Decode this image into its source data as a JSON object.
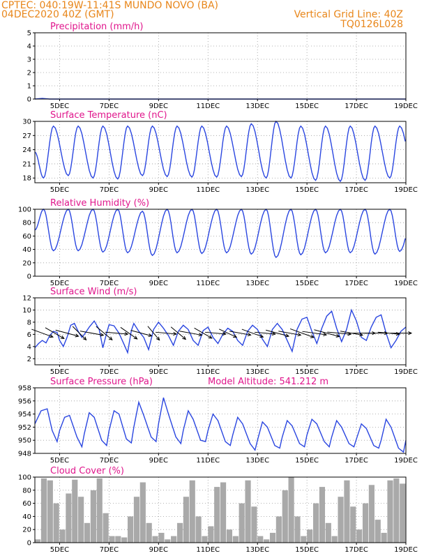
{
  "header": {
    "station": "CPTEC:  040:19W-11:41S  MUNDO NOVO (BA)",
    "run": "04DEC2020 40Z (GMT)",
    "grid_note": "Vertical Grid Line: 40Z",
    "model": "TQ0126L028"
  },
  "colors": {
    "series": "#2a46e0",
    "title": "#e0168c",
    "header": "#e8861a",
    "cloud": "#a9a9a9",
    "wind_arrow": "#000000"
  },
  "chart_data": [
    {
      "type": "line",
      "title": "Precipitation (mm/h)",
      "x_ticks": [
        "5DEC",
        "7DEC",
        "9DEC",
        "11DEC",
        "13DEC",
        "15DEC",
        "17DEC",
        "19DEC"
      ],
      "x_range_days": [
        4,
        19
      ],
      "ylim": [
        0,
        5
      ],
      "y_ticks": [
        0,
        1,
        2,
        3,
        4,
        5
      ],
      "grid": true,
      "series": [
        {
          "x_days": [
            4.0,
            4.3,
            4.6,
            19.0
          ],
          "values": [
            0.0,
            0.05,
            0.0,
            0.0
          ]
        }
      ]
    },
    {
      "type": "line",
      "title": "Surface Temperature (nC)",
      "x_ticks": [
        "5DEC",
        "7DEC",
        "9DEC",
        "11DEC",
        "13DEC",
        "15DEC",
        "17DEC",
        "19DEC"
      ],
      "x_range_days": [
        4,
        19
      ],
      "ylim": [
        17,
        30
      ],
      "y_ticks": [
        18,
        21,
        24,
        27,
        30
      ],
      "grid": true,
      "daily_cycle": {
        "max_at_day_fraction": 0.75,
        "min_at_day_fraction": 0.35,
        "days": [
          "4DEC",
          "5DEC",
          "6DEC",
          "7DEC",
          "8DEC",
          "9DEC",
          "10DEC",
          "11DEC",
          "12DEC",
          "13DEC",
          "14DEC",
          "15DEC",
          "16DEC",
          "17DEC",
          "18DEC",
          "19DEC"
        ],
        "daily_max": [
          29.0,
          29.0,
          29.0,
          29.0,
          29.0,
          29.0,
          29.0,
          29.0,
          29.5,
          30.0,
          29.0,
          29.0,
          29.0,
          29.0,
          29.0,
          29.0
        ],
        "daily_min": [
          18.0,
          18.5,
          18.0,
          17.8,
          18.5,
          18.3,
          18.2,
          18.2,
          18.3,
          18.0,
          18.0,
          17.5,
          17.3,
          17.5,
          18.0,
          18.5
        ]
      }
    },
    {
      "type": "line",
      "title": "Relative Humidity (%)",
      "x_ticks": [
        "5DEC",
        "7DEC",
        "9DEC",
        "11DEC",
        "13DEC",
        "15DEC",
        "17DEC",
        "19DEC"
      ],
      "x_range_days": [
        4,
        19
      ],
      "ylim": [
        0,
        100
      ],
      "y_ticks": [
        0,
        20,
        40,
        60,
        80,
        100
      ],
      "grid": true,
      "daily_cycle": {
        "max_at_day_fraction": 0.35,
        "min_at_day_fraction": 0.75,
        "days": [
          "4DEC",
          "5DEC",
          "6DEC",
          "7DEC",
          "8DEC",
          "9DEC",
          "10DEC",
          "11DEC",
          "12DEC",
          "13DEC",
          "14DEC",
          "15DEC",
          "16DEC",
          "17DEC",
          "18DEC",
          "19DEC"
        ],
        "daily_max": [
          100,
          100,
          100,
          100,
          97,
          100,
          100,
          100,
          100,
          100,
          100,
          100,
          100,
          100,
          100,
          100
        ],
        "daily_min": [
          38,
          38,
          36,
          35,
          31,
          35,
          34,
          35,
          33,
          28,
          32,
          35,
          35,
          33,
          37,
          38
        ]
      }
    },
    {
      "type": "line",
      "title": "Surface Wind (m/s)",
      "x_ticks": [
        "5DEC",
        "7DEC",
        "9DEC",
        "11DEC",
        "13DEC",
        "15DEC",
        "17DEC",
        "19DEC"
      ],
      "x_range_days": [
        4,
        19
      ],
      "ylim": [
        1,
        12
      ],
      "y_ticks": [
        2,
        4,
        6,
        8,
        10,
        12
      ],
      "grid": true,
      "series": [
        {
          "x_days": [
            4.0,
            4.15,
            4.3,
            4.45,
            4.6,
            4.75,
            4.9,
            5.0,
            5.15,
            5.3,
            5.45,
            5.6,
            5.75,
            5.9,
            6.0,
            6.2,
            6.4,
            6.6,
            6.75,
            6.9,
            7.0,
            7.2,
            7.4,
            7.6,
            7.75,
            7.9,
            8.0,
            8.2,
            8.4,
            8.6,
            8.8,
            9.0,
            9.2,
            9.4,
            9.6,
            9.8,
            10.0,
            10.2,
            10.4,
            10.6,
            10.8,
            11.0,
            11.2,
            11.4,
            11.6,
            11.8,
            12.0,
            12.2,
            12.4,
            12.6,
            12.8,
            13.0,
            13.2,
            13.4,
            13.6,
            13.8,
            14.0,
            14.2,
            14.4,
            14.6,
            14.8,
            15.0,
            15.2,
            15.4,
            15.6,
            15.8,
            16.0,
            16.2,
            16.4,
            16.6,
            16.8,
            17.0,
            17.2,
            17.4,
            17.6,
            17.8,
            18.0,
            18.2,
            18.4,
            18.6,
            18.8,
            19.0
          ],
          "values": [
            3.8,
            4.5,
            5.0,
            4.6,
            5.8,
            6.5,
            6.3,
            5.0,
            4.0,
            5.5,
            7.5,
            7.8,
            6.5,
            5.5,
            6.0,
            7.2,
            8.2,
            6.8,
            3.8,
            6.2,
            7.6,
            7.4,
            6.2,
            4.4,
            3.0,
            6.6,
            7.8,
            6.5,
            5.5,
            3.5,
            6.8,
            8.0,
            7.0,
            5.8,
            4.2,
            6.5,
            7.5,
            6.8,
            5.0,
            4.2,
            6.6,
            7.2,
            5.5,
            4.5,
            6.0,
            7.0,
            6.5,
            5.0,
            4.2,
            6.5,
            7.5,
            6.8,
            5.2,
            4.0,
            6.8,
            7.8,
            6.8,
            5.0,
            3.2,
            6.8,
            8.5,
            8.8,
            6.5,
            4.5,
            7.0,
            9.0,
            9.8,
            7.0,
            4.8,
            6.8,
            10.0,
            8.2,
            5.5,
            5.0,
            7.2,
            8.8,
            9.2,
            6.2,
            3.8,
            5.0,
            6.5,
            7.2
          ]
        }
      ],
      "wind_arrows": {
        "x_days": [
          4.3,
          4.8,
          5.3,
          5.8,
          6.3,
          6.8,
          7.3,
          7.8,
          8.3,
          8.8,
          9.3,
          9.8,
          10.3,
          10.8,
          11.3,
          11.8,
          12.3,
          12.8,
          13.3,
          13.8,
          14.3,
          14.8,
          15.3,
          15.8,
          16.3,
          16.8,
          17.3,
          17.8,
          18.3,
          18.8
        ],
        "speed_ms": [
          6.5,
          6.2,
          6.8,
          5.5,
          6.8,
          6.0,
          6.5,
          5.8,
          6.2,
          5.2,
          6.0,
          5.5,
          6.5,
          5.8,
          6.0,
          5.5,
          6.2,
          6.5,
          6.0,
          6.8,
          6.5,
          7.2,
          7.0,
          7.5,
          6.8,
          6.5,
          6.5,
          6.5,
          6.2,
          6.0
        ],
        "dir_deg": [
          110,
          120,
          105,
          135,
          100,
          130,
          95,
          125,
          105,
          140,
          95,
          130,
          100,
          120,
          95,
          115,
          100,
          110,
          95,
          105,
          100,
          110,
          98,
          105,
          95,
          100,
          90,
          90,
          95,
          90
        ]
      }
    },
    {
      "type": "line",
      "title": "Surface Pressure (hPa)",
      "annotation": "Model Altitude: 541.212 m",
      "x_ticks": [
        "5DEC",
        "7DEC",
        "9DEC",
        "11DEC",
        "13DEC",
        "15DEC",
        "17DEC",
        "19DEC"
      ],
      "x_range_days": [
        4,
        19
      ],
      "ylim": [
        948,
        958
      ],
      "y_ticks": [
        948,
        950,
        952,
        954,
        956,
        958
      ],
      "grid": true,
      "series": [
        {
          "x_days": [
            4.0,
            4.25,
            4.5,
            4.7,
            4.9,
            5.0,
            5.2,
            5.4,
            5.7,
            5.9,
            6.0,
            6.2,
            6.4,
            6.7,
            6.9,
            7.0,
            7.2,
            7.4,
            7.7,
            7.9,
            8.0,
            8.2,
            8.4,
            8.7,
            8.9,
            9.0,
            9.2,
            9.4,
            9.7,
            9.9,
            10.0,
            10.2,
            10.4,
            10.7,
            10.9,
            11.0,
            11.2,
            11.4,
            11.7,
            11.9,
            12.0,
            12.2,
            12.4,
            12.7,
            12.9,
            13.0,
            13.2,
            13.4,
            13.7,
            13.9,
            14.0,
            14.2,
            14.4,
            14.7,
            14.9,
            15.0,
            15.2,
            15.4,
            15.7,
            15.9,
            16.0,
            16.2,
            16.4,
            16.7,
            16.9,
            17.0,
            17.2,
            17.4,
            17.7,
            17.9,
            18.0,
            18.2,
            18.4,
            18.7,
            18.9,
            19.0
          ],
          "values": [
            952.5,
            954.5,
            954.8,
            951.5,
            949.8,
            951.5,
            953.5,
            953.8,
            950.5,
            949.0,
            951.0,
            954.2,
            953.5,
            950.0,
            949.2,
            951.5,
            954.5,
            954.0,
            950.2,
            949.6,
            952.0,
            955.8,
            953.8,
            950.5,
            949.8,
            952.5,
            956.5,
            954.0,
            950.5,
            949.5,
            951.5,
            954.5,
            953.2,
            950.0,
            949.8,
            951.5,
            954.0,
            953.0,
            949.8,
            949.2,
            950.8,
            953.5,
            952.5,
            949.5,
            948.5,
            950.0,
            952.8,
            952.0,
            949.2,
            948.8,
            950.5,
            953.0,
            952.2,
            949.5,
            949.0,
            950.8,
            953.2,
            952.5,
            949.8,
            949.0,
            950.5,
            953.0,
            952.0,
            949.5,
            949.0,
            950.2,
            952.5,
            951.8,
            949.2,
            948.8,
            950.0,
            953.2,
            952.0,
            948.8,
            948.2,
            950.0
          ]
        }
      ]
    },
    {
      "type": "bar",
      "title": "Cloud Cover (%)",
      "x_ticks": [
        "5DEC",
        "7DEC",
        "9DEC",
        "11DEC",
        "13DEC",
        "15DEC",
        "17DEC",
        "19DEC"
      ],
      "x_range_days": [
        4,
        19
      ],
      "ylim": [
        0,
        100
      ],
      "y_ticks": [
        0,
        20,
        40,
        60,
        80,
        100
      ],
      "grid": true,
      "series": [
        {
          "x_days": [
            4.0,
            4.25,
            4.5,
            4.75,
            5.0,
            5.25,
            5.5,
            5.75,
            6.0,
            6.25,
            6.5,
            6.75,
            7.0,
            7.25,
            7.5,
            7.75,
            8.0,
            8.25,
            8.5,
            8.75,
            9.0,
            9.25,
            9.5,
            9.75,
            10.0,
            10.25,
            10.5,
            10.75,
            11.0,
            11.25,
            11.5,
            11.75,
            12.0,
            12.25,
            12.5,
            12.75,
            13.0,
            13.25,
            13.5,
            13.75,
            14.0,
            14.25,
            14.5,
            14.75,
            15.0,
            15.25,
            15.5,
            15.75,
            16.0,
            16.25,
            16.5,
            16.75,
            17.0,
            17.25,
            17.5,
            17.75,
            18.0,
            18.25,
            18.5,
            18.75
          ],
          "values": [
            5,
            98,
            95,
            60,
            20,
            75,
            96,
            70,
            30,
            80,
            98,
            45,
            10,
            10,
            8,
            40,
            70,
            92,
            30,
            10,
            15,
            5,
            10,
            30,
            70,
            95,
            40,
            10,
            25,
            85,
            92,
            20,
            10,
            60,
            95,
            55,
            10,
            5,
            15,
            40,
            80,
            100,
            40,
            10,
            20,
            60,
            85,
            30,
            10,
            70,
            95,
            55,
            20,
            60,
            88,
            35,
            15,
            95,
            98,
            90
          ]
        }
      ]
    }
  ]
}
